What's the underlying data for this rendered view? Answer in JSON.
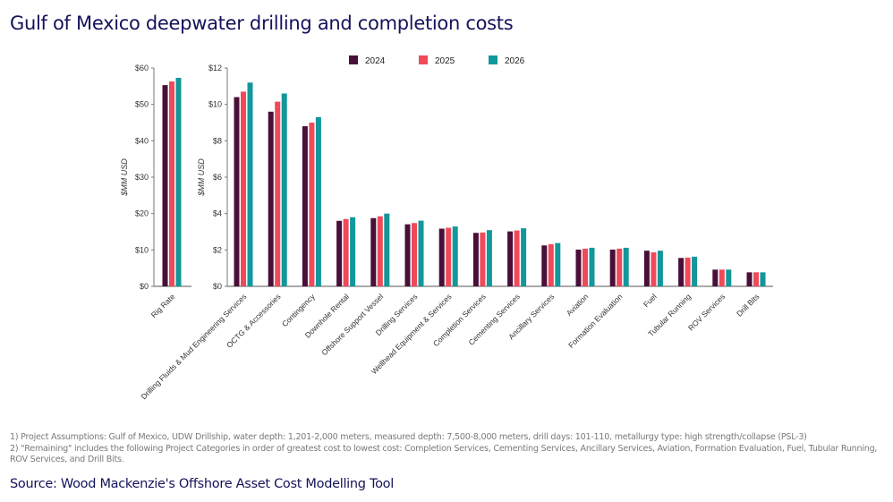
{
  "title": "Gulf of Mexico deepwater drilling and completion costs",
  "notes": [
    "1) Project Assumptions: Gulf of Mexico, UDW Drillship, water depth: 1,201-2,000 meters, measured depth: 7,500-8,000 meters, drill days: 101-110, metallurgy type: high strength/collapse (PSL-3)",
    "2) \"Remaining\" includes the following Project Categories in order of greatest cost to lowest cost: Completion Services, Cementing Services, Ancillary Services, Aviation, Formation Evaluation, Fuel, Tubular Running, ROV Services, and Drill Bits."
  ],
  "source": "Source: Wood Mackenzie's Offshore Asset Cost Modelling Tool",
  "legend": {
    "placement": "top",
    "entries": [
      "2024",
      "2025",
      "2026"
    ]
  },
  "colors": {
    "2024": "#4a0f38",
    "2025": "#ef4a5a",
    "2026": "#12979b",
    "title": "#13135a"
  },
  "chart_data": [
    {
      "type": "bar",
      "ylabel": "$MM USD",
      "ylim": [
        0,
        60
      ],
      "yticks": [
        "$0",
        "$10",
        "$20",
        "$30",
        "$40",
        "$50",
        "$60"
      ],
      "tick_values": [
        0,
        10,
        20,
        30,
        40,
        50,
        60
      ],
      "categories": [
        "Rig Rate"
      ],
      "series": [
        {
          "name": "2024",
          "values": [
            55.3
          ]
        },
        {
          "name": "2025",
          "values": [
            56.3
          ]
        },
        {
          "name": "2026",
          "values": [
            57.3
          ]
        }
      ],
      "grid": false
    },
    {
      "type": "bar",
      "ylabel": "$MM USD",
      "ylim": [
        0,
        12
      ],
      "yticks": [
        "$0",
        "$2",
        "$4",
        "$6",
        "$8",
        "$10",
        "$12"
      ],
      "tick_values": [
        0,
        2,
        4,
        6,
        8,
        10,
        12
      ],
      "categories": [
        "Drilling Fluids & Mud Engineering Services",
        "OCTG & Accessories",
        "Contingency",
        "Downhole Rental",
        "Offshore Support Vessel",
        "Drilling Services",
        "Wellhead Equipment & Services",
        "Completion Services",
        "Cementing Services",
        "Ancillary Services",
        "Aviation",
        "Formation Evaluation",
        "Fuel",
        "Tubular Running",
        "ROV Services",
        "Drill Bits"
      ],
      "series": [
        {
          "name": "2024",
          "values": [
            10.4,
            9.6,
            8.8,
            3.6,
            3.75,
            3.41,
            3.17,
            2.94,
            3.02,
            2.25,
            2.02,
            2.02,
            1.96,
            1.56,
            0.92,
            0.77
          ]
        },
        {
          "name": "2025",
          "values": [
            10.7,
            10.15,
            9.0,
            3.7,
            3.85,
            3.48,
            3.22,
            2.96,
            3.07,
            2.32,
            2.07,
            2.07,
            1.87,
            1.58,
            0.92,
            0.77
          ]
        },
        {
          "name": "2026",
          "values": [
            11.2,
            10.6,
            9.3,
            3.8,
            4.0,
            3.61,
            3.29,
            3.09,
            3.19,
            2.38,
            2.12,
            2.12,
            1.96,
            1.63,
            0.92,
            0.77
          ]
        }
      ],
      "grid": false
    }
  ]
}
